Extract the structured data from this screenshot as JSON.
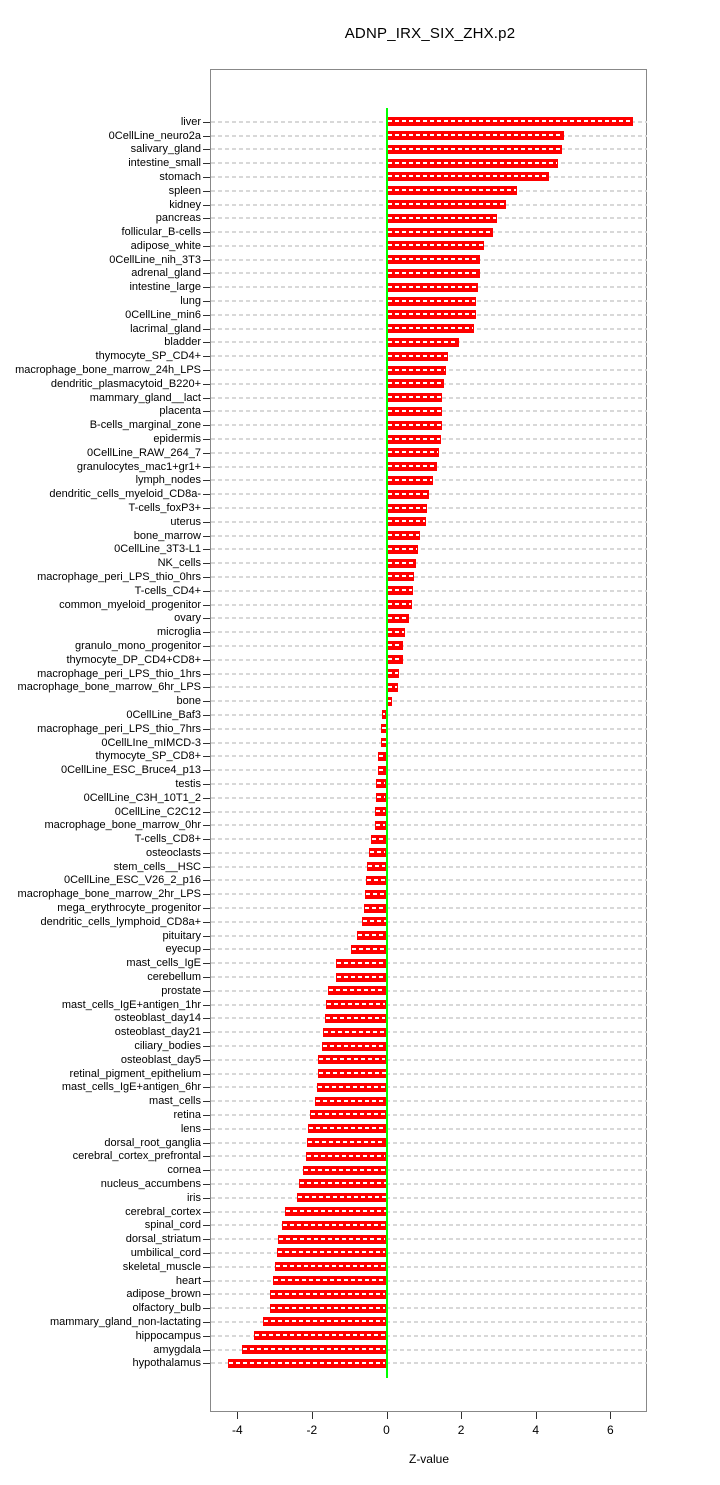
{
  "chart_data": {
    "type": "bar",
    "orientation": "horizontal",
    "title": "ADNP_IRX_SIX_ZHX.p2",
    "xlabel": "Z-value",
    "xticks": [
      -4,
      -2,
      0,
      2,
      4,
      6
    ],
    "xlim": [
      -4.7,
      7.0
    ],
    "grid": "dashed horizontal line per category",
    "legend": "none",
    "bar_color": "#ff0000",
    "zero_line_color": "#00ff00",
    "grid_color": "#d8d8d8",
    "frame_color": "#888888",
    "categories": [
      "liver",
      "0CellLine_neuro2a",
      "salivary_gland",
      "intestine_small",
      "stomach",
      "spleen",
      "kidney",
      "pancreas",
      "follicular_B-cells",
      "adipose_white",
      "0CellLine_nih_3T3",
      "adrenal_gland",
      "intestine_large",
      "lung",
      "0CellLine_min6",
      "lacrimal_gland",
      "bladder",
      "thymocyte_SP_CD4+",
      "macrophage_bone_marrow_24h_LPS",
      "dendritic_plasmacytoid_B220+",
      "mammary_gland__lact",
      "placenta",
      "B-cells_marginal_zone",
      "epidermis",
      "0CellLine_RAW_264_7",
      "granulocytes_mac1+gr1+",
      "lymph_nodes",
      "dendritic_cells_myeloid_CD8a-",
      "T-cells_foxP3+",
      "uterus",
      "bone_marrow",
      "0CellLine_3T3-L1",
      "NK_cells",
      "macrophage_peri_LPS_thio_0hrs",
      "T-cells_CD4+",
      "common_myeloid_progenitor",
      "ovary",
      "microglia",
      "granulo_mono_progenitor",
      "thymocyte_DP_CD4+CD8+",
      "macrophage_peri_LPS_thio_1hrs",
      "macrophage_bone_marrow_6hr_LPS",
      "bone",
      "0CellLine_Baf3",
      "macrophage_peri_LPS_thio_7hrs",
      "0CellLIne_mIMCD-3",
      "thymocyte_SP_CD8+",
      "0CellLine_ESC_Bruce4_p13",
      "testis",
      "0CellLine_C3H_10T1_2",
      "0CellLine_C2C12",
      "macrophage_bone_marrow_0hr",
      "T-cells_CD8+",
      "osteoclasts",
      "stem_cells__HSC",
      "0CellLine_ESC_V26_2_p16",
      "macrophage_bone_marrow_2hr_LPS",
      "mega_erythrocyte_progenitor",
      "dendritic_cells_lymphoid_CD8a+",
      "pituitary",
      "eyecup",
      "mast_cells_IgE",
      "cerebellum",
      "prostate",
      "mast_cells_IgE+antigen_1hr",
      "osteoblast_day14",
      "osteoblast_day21",
      "ciliary_bodies",
      "osteoblast_day5",
      "retinal_pigment_epithelium",
      "mast_cells_IgE+antigen_6hr",
      "mast_cells",
      "retina",
      "lens",
      "dorsal_root_ganglia",
      "cerebral_cortex_prefrontal",
      "cornea",
      "nucleus_accumbens",
      "iris",
      "cerebral_cortex",
      "spinal_cord",
      "dorsal_striatum",
      "umbilical_cord",
      "skeletal_muscle",
      "heart",
      "adipose_brown",
      "olfactory_bulb",
      "mammary_gland_non-lactating",
      "hippocampus",
      "amygdala",
      "hypothalamus"
    ],
    "values": [
      6.6,
      4.75,
      4.7,
      4.6,
      4.35,
      3.5,
      3.2,
      2.95,
      2.85,
      2.6,
      2.5,
      2.5,
      2.45,
      2.4,
      2.4,
      2.35,
      1.95,
      1.65,
      1.6,
      1.55,
      1.5,
      1.5,
      1.48,
      1.45,
      1.4,
      1.35,
      1.25,
      1.15,
      1.08,
      1.05,
      0.9,
      0.85,
      0.8,
      0.73,
      0.7,
      0.68,
      0.6,
      0.5,
      0.45,
      0.43,
      0.33,
      0.3,
      0.15,
      -0.13,
      -0.16,
      -0.16,
      -0.22,
      -0.22,
      -0.28,
      -0.29,
      -0.31,
      -0.31,
      -0.43,
      -0.48,
      -0.52,
      -0.54,
      -0.58,
      -0.61,
      -0.67,
      -0.78,
      -0.96,
      -1.36,
      -1.36,
      -1.58,
      -1.63,
      -1.64,
      -1.7,
      -1.72,
      -1.84,
      -1.85,
      -1.86,
      -1.91,
      -2.06,
      -2.11,
      -2.12,
      -2.16,
      -2.25,
      -2.36,
      -2.4,
      -2.72,
      -2.79,
      -2.9,
      -2.93,
      -2.98,
      -3.04,
      -3.13,
      -3.13,
      -3.32,
      -3.55,
      -3.87,
      -4.24
    ]
  }
}
